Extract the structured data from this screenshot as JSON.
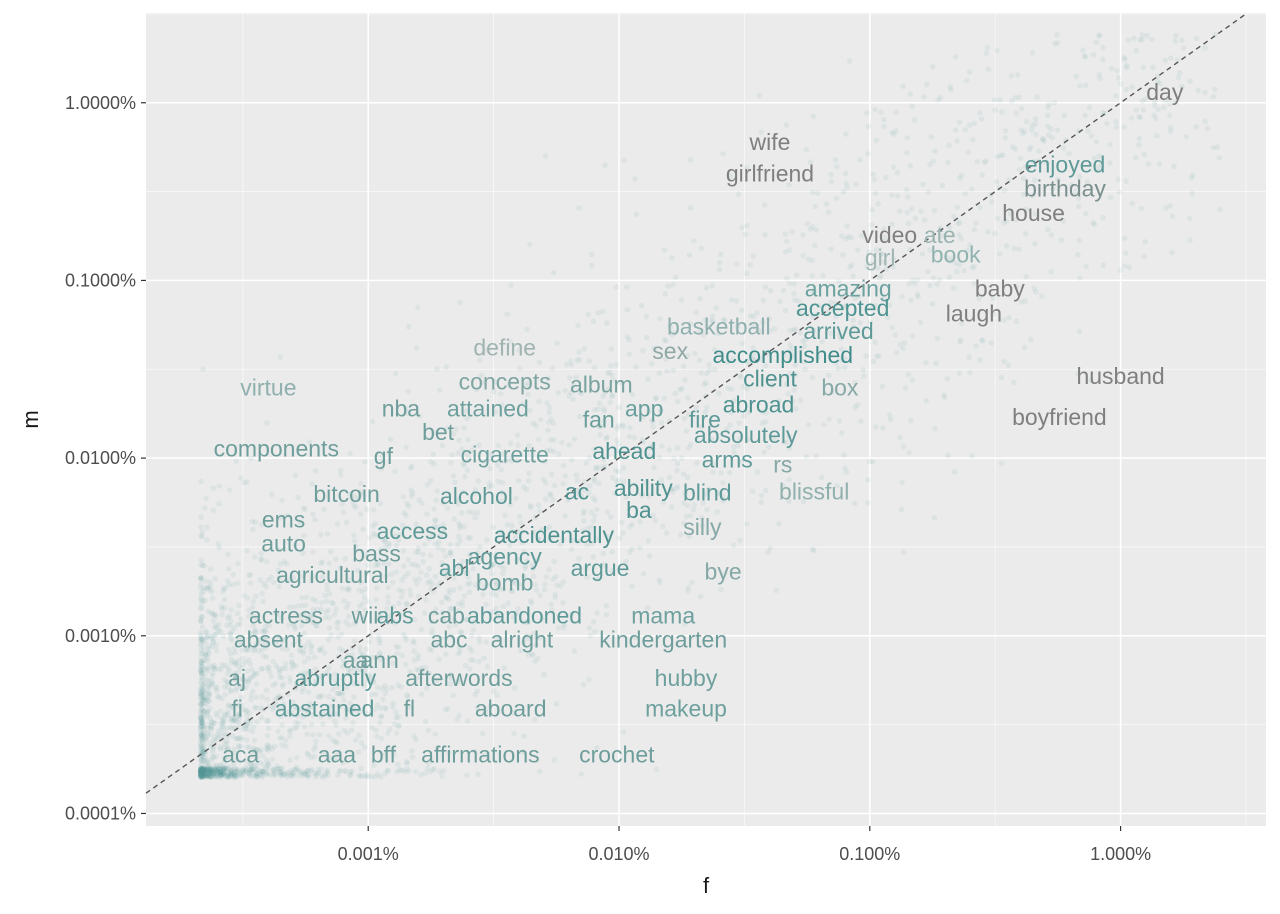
{
  "chart_data": {
    "type": "scatter",
    "title": "",
    "xlabel": "f",
    "ylabel": "m",
    "x_scale": "log10",
    "y_scale": "log10",
    "xlim": [
      0.00013,
      3.8
    ],
    "ylim": [
      8.5e-05,
      3.2
    ],
    "x_ticks": [
      {
        "value": 0.001,
        "label": "0.001%"
      },
      {
        "value": 0.01,
        "label": "0.010%"
      },
      {
        "value": 0.1,
        "label": "0.100%"
      },
      {
        "value": 1,
        "label": "1.000%"
      }
    ],
    "y_ticks": [
      {
        "value": 0.0001,
        "label": "0.0001%"
      },
      {
        "value": 0.001,
        "label": "0.0010%"
      },
      {
        "value": 0.01,
        "label": "0.0100%"
      },
      {
        "value": 0.1,
        "label": "0.1000%"
      },
      {
        "value": 1,
        "label": "1.0000%"
      }
    ],
    "reference_line": {
      "type": "dashed",
      "slope": 1,
      "intercept": 0,
      "color": "#555555"
    },
    "grid": true,
    "panel_background": "#ebebeb",
    "grid_color": "#ffffff",
    "point_color": "#5a9a96",
    "color_scale": {
      "low": "#8a8a8a",
      "high": "#3d8c8c",
      "meaning": "closeness to the diagonal"
    },
    "words": [
      {
        "word": "day",
        "f": 1.5,
        "m": 1.15,
        "color": "#7f7f7f"
      },
      {
        "word": "wife",
        "f": 0.04,
        "m": 0.6,
        "color": "#7f7f7f"
      },
      {
        "word": "girlfriend",
        "f": 0.04,
        "m": 0.4,
        "color": "#7f7f7f"
      },
      {
        "word": "enjoyed",
        "f": 0.6,
        "m": 0.45,
        "color": "#5e9a98"
      },
      {
        "word": "birthday",
        "f": 0.6,
        "m": 0.33,
        "color": "#7a8f8e"
      },
      {
        "word": "house",
        "f": 0.45,
        "m": 0.24,
        "color": "#7f7f7f"
      },
      {
        "word": "video",
        "f": 0.12,
        "m": 0.18,
        "color": "#7f7f7f"
      },
      {
        "word": "ate",
        "f": 0.19,
        "m": 0.18,
        "color": "#99b3b1"
      },
      {
        "word": "girl",
        "f": 0.11,
        "m": 0.135,
        "color": "#a0b6b4"
      },
      {
        "word": "book",
        "f": 0.22,
        "m": 0.14,
        "color": "#90b3b0"
      },
      {
        "word": "amazing",
        "f": 0.082,
        "m": 0.09,
        "color": "#6aa29f"
      },
      {
        "word": "baby",
        "f": 0.33,
        "m": 0.09,
        "color": "#7f7f7f"
      },
      {
        "word": "accepted",
        "f": 0.078,
        "m": 0.07,
        "color": "#4d9492"
      },
      {
        "word": "laugh",
        "f": 0.26,
        "m": 0.065,
        "color": "#7f7f7f"
      },
      {
        "word": "basketball",
        "f": 0.025,
        "m": 0.055,
        "color": "#8fb0ae"
      },
      {
        "word": "arrived",
        "f": 0.075,
        "m": 0.052,
        "color": "#5e9a98"
      },
      {
        "word": "define",
        "f": 0.0035,
        "m": 0.042,
        "color": "#9fb3b1"
      },
      {
        "word": "sex",
        "f": 0.016,
        "m": 0.04,
        "color": "#8fa8a6"
      },
      {
        "word": "accomplished",
        "f": 0.045,
        "m": 0.038,
        "color": "#3f8c8a"
      },
      {
        "word": "concepts",
        "f": 0.0035,
        "m": 0.027,
        "color": "#7fa5a3"
      },
      {
        "word": "album",
        "f": 0.0085,
        "m": 0.026,
        "color": "#7aa3a0"
      },
      {
        "word": "client",
        "f": 0.04,
        "m": 0.028,
        "color": "#4f9290"
      },
      {
        "word": "virtue",
        "f": 0.0004,
        "m": 0.025,
        "color": "#8fb0ae"
      },
      {
        "word": "box",
        "f": 0.076,
        "m": 0.025,
        "color": "#86a8a6"
      },
      {
        "word": "husband",
        "f": 1.0,
        "m": 0.029,
        "color": "#7f7f7f"
      },
      {
        "word": "abroad",
        "f": 0.036,
        "m": 0.02,
        "color": "#4d9290"
      },
      {
        "word": "nba",
        "f": 0.00135,
        "m": 0.019,
        "color": "#6e9e9b"
      },
      {
        "word": "attained",
        "f": 0.003,
        "m": 0.019,
        "color": "#6ea09e"
      },
      {
        "word": "app",
        "f": 0.0126,
        "m": 0.019,
        "color": "#6aa09d"
      },
      {
        "word": "fan",
        "f": 0.0083,
        "m": 0.0165,
        "color": "#6a9e9b"
      },
      {
        "word": "fire",
        "f": 0.022,
        "m": 0.0165,
        "color": "#5e9a98"
      },
      {
        "word": "boyfriend",
        "f": 0.57,
        "m": 0.017,
        "color": "#7f7f7f"
      },
      {
        "word": "bet",
        "f": 0.0019,
        "m": 0.014,
        "color": "#6e9e9b"
      },
      {
        "word": "absolutely",
        "f": 0.032,
        "m": 0.0135,
        "color": "#5e9a98"
      },
      {
        "word": "components",
        "f": 0.00043,
        "m": 0.0113,
        "color": "#6e9e9b"
      },
      {
        "word": "gf",
        "f": 0.00115,
        "m": 0.0103,
        "color": "#6e9e9b"
      },
      {
        "word": "cigarette",
        "f": 0.0035,
        "m": 0.0105,
        "color": "#6ea09e"
      },
      {
        "word": "ahead",
        "f": 0.0105,
        "m": 0.011,
        "color": "#4f9290"
      },
      {
        "word": "arms",
        "f": 0.027,
        "m": 0.0098,
        "color": "#5e9a98"
      },
      {
        "word": "rs",
        "f": 0.045,
        "m": 0.0092,
        "color": "#86a8a6"
      },
      {
        "word": "bitcoin",
        "f": 0.00082,
        "m": 0.0063,
        "color": "#6e9e9b"
      },
      {
        "word": "alcohol",
        "f": 0.0027,
        "m": 0.0061,
        "color": "#5e9a98"
      },
      {
        "word": "ac",
        "f": 0.0068,
        "m": 0.0065,
        "color": "#4f9290"
      },
      {
        "word": "ability",
        "f": 0.0125,
        "m": 0.0068,
        "color": "#4f9290"
      },
      {
        "word": "blind",
        "f": 0.0225,
        "m": 0.0064,
        "color": "#5e9a98"
      },
      {
        "word": "blissful",
        "f": 0.06,
        "m": 0.0065,
        "color": "#90b0ae"
      },
      {
        "word": "ems",
        "f": 0.00046,
        "m": 0.0045,
        "color": "#6e9e9b"
      },
      {
        "word": "ba",
        "f": 0.012,
        "m": 0.0051,
        "color": "#4f9290"
      },
      {
        "word": "access",
        "f": 0.0015,
        "m": 0.0039,
        "color": "#5e9a98"
      },
      {
        "word": "accidentally",
        "f": 0.0055,
        "m": 0.0037,
        "color": "#4f9290"
      },
      {
        "word": "silly",
        "f": 0.0215,
        "m": 0.0041,
        "color": "#86a8a6"
      },
      {
        "word": "auto",
        "f": 0.00046,
        "m": 0.0033,
        "color": "#6e9e9b"
      },
      {
        "word": "bass",
        "f": 0.00108,
        "m": 0.0029,
        "color": "#6e9e9b"
      },
      {
        "word": "agency",
        "f": 0.0035,
        "m": 0.0028,
        "color": "#5e9a98"
      },
      {
        "word": "abl",
        "f": 0.0022,
        "m": 0.0024,
        "color": "#5e9a98"
      },
      {
        "word": "argue",
        "f": 0.0084,
        "m": 0.0024,
        "color": "#5e9a98"
      },
      {
        "word": "agricultural",
        "f": 0.00072,
        "m": 0.0022,
        "color": "#6e9e9b"
      },
      {
        "word": "bomb",
        "f": 0.0035,
        "m": 0.002,
        "color": "#6ea09e"
      },
      {
        "word": "bye",
        "f": 0.026,
        "m": 0.0023,
        "color": "#86a8a6"
      },
      {
        "word": "actress",
        "f": 0.00047,
        "m": 0.0013,
        "color": "#6e9e9b"
      },
      {
        "word": "wii",
        "f": 0.00097,
        "m": 0.0013,
        "color": "#6e9e9b"
      },
      {
        "word": "abs",
        "f": 0.00128,
        "m": 0.0013,
        "color": "#5e9a98"
      },
      {
        "word": "cab",
        "f": 0.00205,
        "m": 0.0013,
        "color": "#6e9e9b"
      },
      {
        "word": "abandoned",
        "f": 0.0042,
        "m": 0.0013,
        "color": "#5e9a98"
      },
      {
        "word": "mama",
        "f": 0.015,
        "m": 0.0013,
        "color": "#6ea09e"
      },
      {
        "word": "absent",
        "f": 0.0004,
        "m": 0.00095,
        "color": "#6e9e9b"
      },
      {
        "word": "abc",
        "f": 0.0021,
        "m": 0.00095,
        "color": "#6e9e9b"
      },
      {
        "word": "alright",
        "f": 0.0041,
        "m": 0.00095,
        "color": "#6e9e9b"
      },
      {
        "word": "kindergarten",
        "f": 0.015,
        "m": 0.00095,
        "color": "#6e9e9b"
      },
      {
        "word": "aa",
        "f": 0.00089,
        "m": 0.00073,
        "color": "#6e9e9b"
      },
      {
        "word": "ann",
        "f": 0.00111,
        "m": 0.00073,
        "color": "#6e9e9b"
      },
      {
        "word": "aj",
        "f": 0.0003,
        "m": 0.00058,
        "color": "#6e9e9b"
      },
      {
        "word": "abruptly",
        "f": 0.00074,
        "m": 0.00058,
        "color": "#5e9a98"
      },
      {
        "word": "afterwords",
        "f": 0.0023,
        "m": 0.00058,
        "color": "#6e9e9b"
      },
      {
        "word": "hubby",
        "f": 0.0185,
        "m": 0.00058,
        "color": "#6ea09e"
      },
      {
        "word": "fi",
        "f": 0.0003,
        "m": 0.00039,
        "color": "#6e9e9b"
      },
      {
        "word": "abstained",
        "f": 0.00067,
        "m": 0.00039,
        "color": "#5e9a98"
      },
      {
        "word": "fl",
        "f": 0.00146,
        "m": 0.00039,
        "color": "#6e9e9b"
      },
      {
        "word": "aboard",
        "f": 0.0037,
        "m": 0.00039,
        "color": "#6e9e9b"
      },
      {
        "word": "makeup",
        "f": 0.0185,
        "m": 0.00039,
        "color": "#6ea09e"
      },
      {
        "word": "aca",
        "f": 0.00031,
        "m": 0.000215,
        "color": "#6e9e9b"
      },
      {
        "word": "aaa",
        "f": 0.00075,
        "m": 0.000215,
        "color": "#6e9e9b"
      },
      {
        "word": "bff",
        "f": 0.00115,
        "m": 0.000215,
        "color": "#6e9e9b"
      },
      {
        "word": "affirmations",
        "f": 0.0028,
        "m": 0.000215,
        "color": "#6e9e9b"
      },
      {
        "word": "crochet",
        "f": 0.0098,
        "m": 0.000215,
        "color": "#6e9e9b"
      }
    ]
  }
}
